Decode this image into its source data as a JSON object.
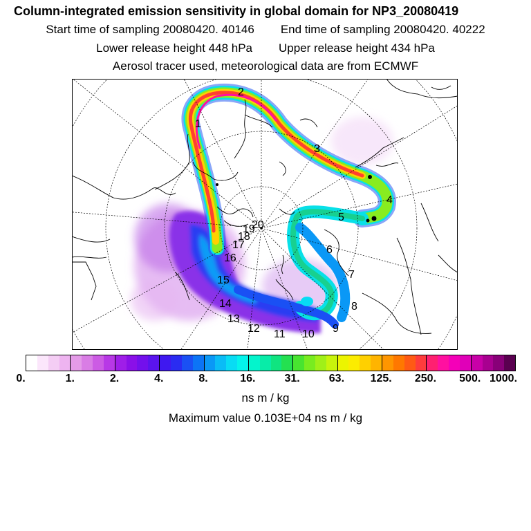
{
  "header": {
    "title": "Column-integrated emission sensitivity in global domain for NP3_20080419",
    "start_time": "Start time of sampling 20080420. 40146",
    "end_time": "End time of sampling 20080420. 40222",
    "lower_height": "Lower release height  448 hPa",
    "upper_height": "Upper release height  434 hPa",
    "aerosol_note": "Aerosol tracer used, meteorological data are from ECMWF"
  },
  "map": {
    "projection": "polar stereographic (north pole)",
    "track_labels": [
      "2",
      "1",
      "3",
      "4",
      "5",
      "6",
      "7",
      "8",
      "9",
      "10",
      "11",
      "12",
      "13",
      "14",
      "15",
      "16",
      "17",
      "18",
      "19",
      "20"
    ]
  },
  "colorbar": {
    "colors": [
      "#ffffff",
      "#fbe6fb",
      "#f4cdf4",
      "#eeb4f0",
      "#e49be8",
      "#d97de5",
      "#cc5be4",
      "#b838e6",
      "#9f1ee8",
      "#8a10e8",
      "#7310ec",
      "#5a14ee",
      "#3f18f0",
      "#2a2cf2",
      "#1a50f4",
      "#0c74f6",
      "#0a98f6",
      "#0abcf6",
      "#08dcf4",
      "#04f4ec",
      "#04f4cc",
      "#08eca8",
      "#10e480",
      "#24e050",
      "#48e430",
      "#78ec20",
      "#a0f018",
      "#c8f40c",
      "#ecf400",
      "#fcec00",
      "#ffd000",
      "#ffb400",
      "#ff9600",
      "#ff7800",
      "#ff5a14",
      "#ff3c3c",
      "#ff2070",
      "#ff10a0",
      "#f400b8",
      "#e000b8",
      "#c800a8",
      "#a80090",
      "#880078",
      "#5a0050"
    ],
    "tick_labels": [
      "0.",
      "1.",
      "2.",
      "4.",
      "8.",
      "16.",
      "31.",
      "63.",
      "125.",
      "250.",
      "500.",
      "1000."
    ]
  },
  "units": "ns m / kg",
  "max_value": "Maximum value  0.103E+04 ns m / kg"
}
